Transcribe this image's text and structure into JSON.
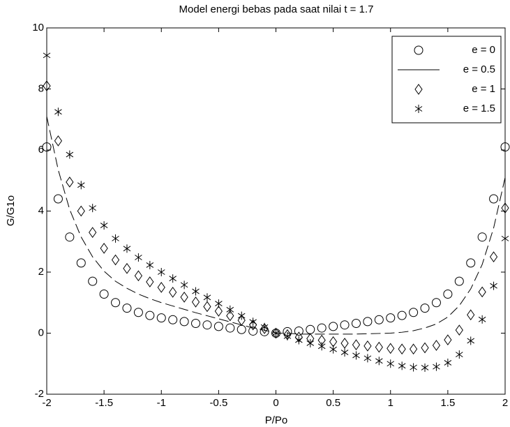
{
  "chart_data": {
    "type": "scatter",
    "title": "Model energi bebas  pada saat nilai t = 1.7",
    "x_label": "P/Po",
    "y_label": "G/G1o",
    "x": [
      -2,
      -1.9,
      -1.8,
      -1.7,
      -1.6,
      -1.5,
      -1.4,
      -1.3,
      -1.2,
      -1.1,
      -1,
      -0.9,
      -0.8,
      -0.7,
      -0.6,
      -0.5,
      -0.4,
      -0.3,
      -0.2,
      -0.1,
      0,
      0.1,
      0.2,
      0.3,
      0.4,
      0.5,
      0.6,
      0.7,
      0.8,
      0.9,
      1,
      1.1,
      1.2,
      1.3,
      1.4,
      1.5,
      1.6,
      1.7,
      1.8,
      1.9,
      2
    ],
    "series": [
      {
        "name": "e = 0",
        "color": "#000000",
        "marker": "circle",
        "line": "none",
        "values": [
          6.1,
          4.4,
          3.15,
          2.3,
          1.7,
          1.28,
          1.0,
          0.82,
          0.68,
          0.58,
          0.5,
          0.44,
          0.38,
          0.32,
          0.27,
          0.22,
          0.17,
          0.12,
          0.07,
          0.05,
          0,
          0.05,
          0.07,
          0.12,
          0.17,
          0.22,
          0.27,
          0.32,
          0.38,
          0.44,
          0.5,
          0.58,
          0.68,
          0.82,
          1.0,
          1.28,
          1.7,
          2.3,
          3.15,
          4.4,
          6.1
        ]
      },
      {
        "name": "e = 0.5",
        "color": "#000000",
        "marker": "none",
        "line": "dashed",
        "values": [
          7.1,
          5.35,
          4.05,
          3.15,
          2.5,
          2.03,
          1.7,
          1.47,
          1.28,
          1.13,
          1.0,
          0.89,
          0.78,
          0.67,
          0.57,
          0.47,
          0.37,
          0.27,
          0.17,
          0.1,
          0,
          0,
          -0.03,
          -0.03,
          -0.03,
          -0.03,
          -0.03,
          -0.03,
          -0.02,
          -0.01,
          0,
          0.03,
          0.08,
          0.17,
          0.3,
          0.53,
          0.9,
          1.45,
          2.25,
          3.45,
          5.1
        ]
      },
      {
        "name": "e = 1",
        "color": "#000000",
        "marker": "diamond",
        "line": "none",
        "values": [
          8.1,
          6.3,
          4.95,
          4.0,
          3.3,
          2.78,
          2.4,
          2.12,
          1.88,
          1.68,
          1.5,
          1.34,
          1.18,
          1.02,
          0.87,
          0.72,
          0.57,
          0.42,
          0.27,
          0.15,
          0,
          -0.05,
          -0.13,
          -0.18,
          -0.23,
          -0.28,
          -0.33,
          -0.38,
          -0.42,
          -0.46,
          -0.5,
          -0.52,
          -0.52,
          -0.48,
          -0.4,
          -0.22,
          0.1,
          0.6,
          1.35,
          2.5,
          4.1
        ]
      },
      {
        "name": "e = 1.5",
        "color": "#000000",
        "marker": "asterisk",
        "line": "none",
        "values": [
          9.1,
          7.25,
          5.85,
          4.85,
          4.1,
          3.53,
          3.1,
          2.77,
          2.48,
          2.23,
          2.0,
          1.79,
          1.58,
          1.37,
          1.17,
          0.97,
          0.77,
          0.57,
          0.37,
          0.2,
          0,
          -0.1,
          -0.23,
          -0.33,
          -0.43,
          -0.53,
          -0.63,
          -0.73,
          -0.82,
          -0.91,
          -1.0,
          -1.07,
          -1.12,
          -1.13,
          -1.1,
          -0.97,
          -0.7,
          -0.25,
          0.45,
          1.55,
          3.1
        ]
      }
    ],
    "xlim": [
      -2,
      2
    ],
    "ylim": [
      -2,
      10
    ],
    "xticks": [
      -2,
      -1.5,
      -1,
      -0.5,
      0,
      0.5,
      1,
      1.5,
      2
    ],
    "yticks": [
      -2,
      0,
      2,
      4,
      6,
      8,
      10
    ],
    "grid": false,
    "legend": "upper right"
  }
}
